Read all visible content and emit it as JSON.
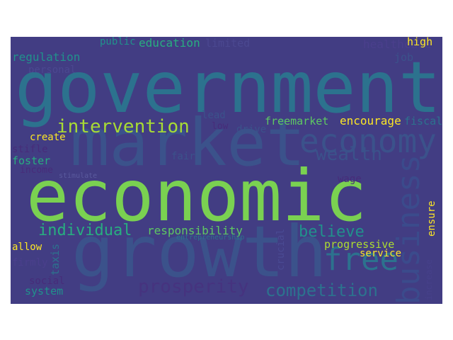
{
  "colors": {
    "background": "#423d83",
    "page": "#ffffff",
    "palette": [
      "#472c7a",
      "#3b528b",
      "#2c728e",
      "#21918c",
      "#28ae80",
      "#5ec962",
      "#addc30",
      "#fde725"
    ]
  },
  "words": {
    "government": "government",
    "market": "market",
    "economic": "economic",
    "growth": "growth",
    "intervention": "intervention",
    "individual": "individual",
    "responsibility": "responsibility",
    "believe": "believe",
    "competition": "competition",
    "wealth": "wealth",
    "economy": "economy",
    "business": "business",
    "free": "free",
    "prosperity": "prosperity",
    "regulation": "regulation",
    "public": "public",
    "education": "education",
    "limited": "limited",
    "healthcare": "healthcare",
    "high": "high",
    "job": "job",
    "personal": "personal",
    "lead": "lead",
    "low": "low",
    "drive": "drive",
    "freemarket": "freemarket",
    "encourage": "encourage",
    "fiscal": "fiscal",
    "create": "create",
    "stifle": "stifle",
    "foster": "foster",
    "income": "income",
    "fair": "fair",
    "stimulate": "stimulate",
    "wage": "wage",
    "ensure": "ensure",
    "allow": "allow",
    "taxis": "taxis",
    "entrepreneurship": "entrepreneurship",
    "crucial": "crucial",
    "progressive": "progressive",
    "service": "service",
    "firmly": "firmly",
    "social": "social",
    "system": "system",
    "increase": "increase"
  }
}
